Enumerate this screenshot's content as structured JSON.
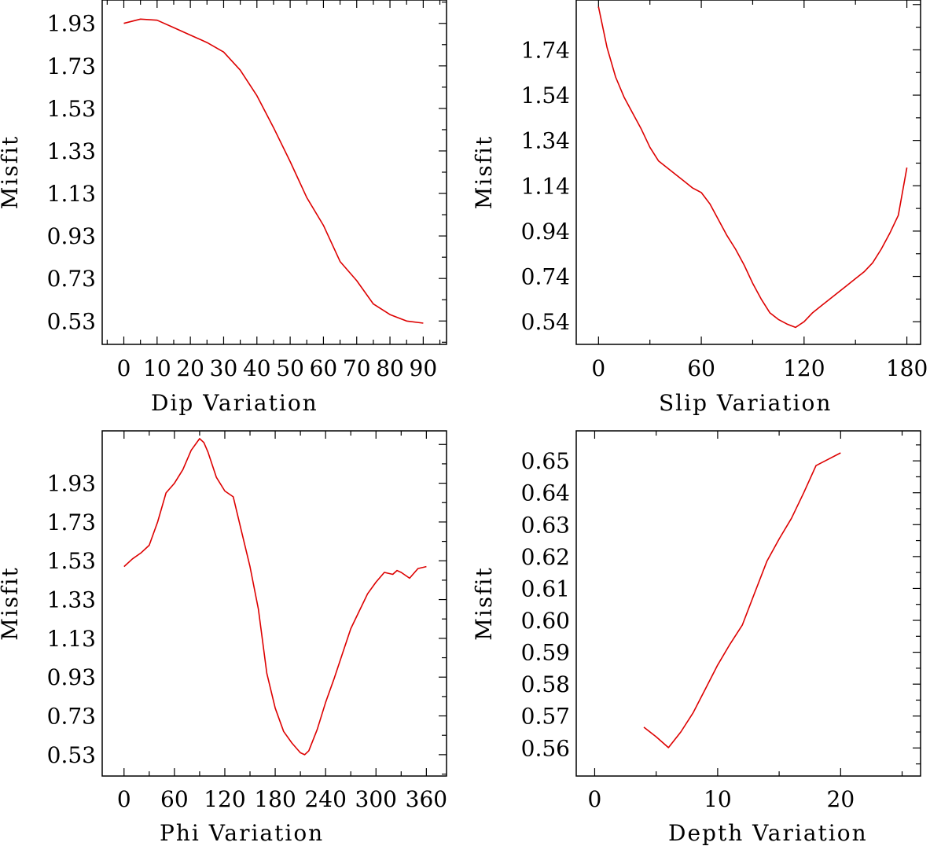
{
  "figure": {
    "line_color": "#dd0000",
    "axis_color": "#000000",
    "background": "#ffffff"
  },
  "chart_data": [
    {
      "type": "line",
      "xlabel": "Dip    Variation",
      "ylabel": "Misfit",
      "xlim": [
        -6.5,
        97
      ],
      "ylim": [
        0.42,
        2.04
      ],
      "xticks": [
        0,
        10,
        20,
        30,
        40,
        50,
        60,
        70,
        80,
        90
      ],
      "xtick_labels": [
        "0",
        "10",
        "20",
        "30",
        "40",
        "50",
        "60",
        "70",
        "80",
        "90"
      ],
      "yticks": [
        0.53,
        0.73,
        0.93,
        1.13,
        1.33,
        1.53,
        1.73,
        1.93
      ],
      "ytick_labels": [
        "0.53",
        "0.73",
        "0.93",
        "1.13",
        "1.33",
        "1.53",
        "1.73",
        "1.93"
      ],
      "x": [
        0,
        5,
        10,
        15,
        20,
        25,
        30,
        35,
        40,
        45,
        50,
        55,
        60,
        65,
        70,
        75,
        80,
        85,
        90
      ],
      "y": [
        1.93,
        1.95,
        1.945,
        1.91,
        1.875,
        1.84,
        1.795,
        1.71,
        1.59,
        1.44,
        1.28,
        1.11,
        0.98,
        0.81,
        0.72,
        0.61,
        0.56,
        0.53,
        0.52
      ]
    },
    {
      "type": "line",
      "xlabel": "Slip   Variation",
      "ylabel": "Misfit",
      "xlim": [
        -13,
        188
      ],
      "ylim": [
        0.44,
        1.96
      ],
      "xticks": [
        0,
        60,
        120,
        180
      ],
      "xtick_labels": [
        "0",
        "60",
        "120",
        "180"
      ],
      "yticks": [
        0.54,
        0.74,
        0.94,
        1.14,
        1.34,
        1.54,
        1.74
      ],
      "ytick_labels": [
        "0.54",
        "0.74",
        "0.94",
        "1.14",
        "1.34",
        "1.54",
        "1.74"
      ],
      "x": [
        0,
        5,
        10,
        15,
        20,
        25,
        30,
        35,
        40,
        45,
        50,
        55,
        60,
        65,
        70,
        75,
        80,
        85,
        90,
        95,
        100,
        105,
        110,
        115,
        120,
        125,
        130,
        135,
        140,
        145,
        150,
        155,
        160,
        165,
        170,
        175,
        180
      ],
      "y": [
        1.93,
        1.75,
        1.62,
        1.53,
        1.46,
        1.39,
        1.31,
        1.25,
        1.22,
        1.19,
        1.16,
        1.13,
        1.11,
        1.06,
        0.99,
        0.92,
        0.86,
        0.79,
        0.71,
        0.64,
        0.58,
        0.55,
        0.53,
        0.515,
        0.54,
        0.58,
        0.61,
        0.64,
        0.67,
        0.7,
        0.73,
        0.76,
        0.8,
        0.86,
        0.93,
        1.01,
        1.22
      ]
    },
    {
      "type": "line",
      "xlabel": "Phi    Variation",
      "ylabel": "Misfit",
      "xlim": [
        -26,
        384
      ],
      "ylim": [
        0.42,
        2.2
      ],
      "xticks": [
        0,
        60,
        120,
        180,
        240,
        300,
        360
      ],
      "xtick_labels": [
        "0",
        "60",
        "120",
        "180",
        "240",
        "300",
        "360"
      ],
      "yticks": [
        0.53,
        0.73,
        0.93,
        1.13,
        1.33,
        1.53,
        1.73,
        1.93
      ],
      "ytick_labels": [
        "0.53",
        "0.73",
        "0.93",
        "1.13",
        "1.33",
        "1.53",
        "1.73",
        "1.93"
      ],
      "x": [
        0,
        10,
        20,
        30,
        40,
        50,
        60,
        70,
        80,
        90,
        95,
        100,
        110,
        120,
        130,
        140,
        150,
        160,
        170,
        180,
        190,
        200,
        210,
        215,
        220,
        230,
        240,
        250,
        260,
        270,
        280,
        290,
        300,
        310,
        320,
        325,
        330,
        340,
        350,
        360
      ],
      "y": [
        1.5,
        1.54,
        1.57,
        1.61,
        1.73,
        1.88,
        1.93,
        2.0,
        2.1,
        2.16,
        2.14,
        2.09,
        1.96,
        1.89,
        1.86,
        1.68,
        1.5,
        1.28,
        0.95,
        0.77,
        0.65,
        0.59,
        0.54,
        0.53,
        0.55,
        0.66,
        0.8,
        0.92,
        1.05,
        1.18,
        1.27,
        1.36,
        1.42,
        1.47,
        1.46,
        1.48,
        1.47,
        1.44,
        1.49,
        1.5
      ]
    },
    {
      "type": "line",
      "xlabel": "Depth  Variation",
      "ylabel": "Misfit",
      "xlim": [
        -1.5,
        26.5
      ],
      "ylim": [
        0.5512,
        0.6594
      ],
      "xticks": [
        0,
        10,
        20
      ],
      "xtick_labels": [
        "0",
        "10",
        "20"
      ],
      "yticks": [
        0.56,
        0.57,
        0.58,
        0.59,
        0.6,
        0.61,
        0.62,
        0.63,
        0.64,
        0.65
      ],
      "ytick_labels": [
        "0.56",
        "0.57",
        "0.58",
        "0.59",
        "0.60",
        "0.61",
        "0.62",
        "0.63",
        "0.64",
        "0.65"
      ],
      "x": [
        4,
        5,
        6,
        7,
        8,
        9,
        10,
        11,
        12,
        13,
        14,
        15,
        16,
        17,
        18,
        19,
        20
      ],
      "y": [
        0.5665,
        0.5635,
        0.5601,
        0.565,
        0.571,
        0.5785,
        0.586,
        0.5925,
        0.5985,
        0.6085,
        0.6185,
        0.6255,
        0.632,
        0.64,
        0.6485,
        0.6505,
        0.6525
      ]
    }
  ]
}
